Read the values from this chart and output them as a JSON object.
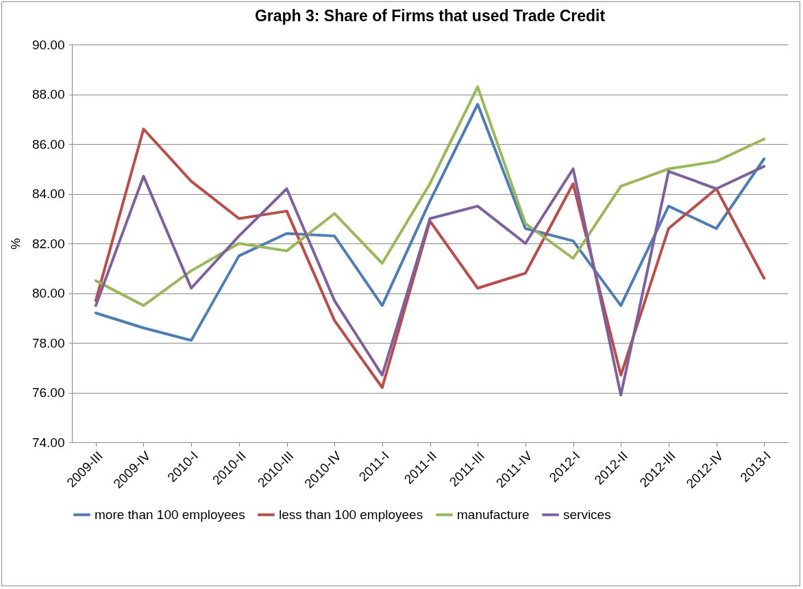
{
  "chart_data": {
    "type": "line",
    "title": "Graph 3: Share of Firms that used Trade Credit",
    "ylabel": "%",
    "categories": [
      "2009-III",
      "2009-IV",
      "2010-I",
      "2010-II",
      "2010-III",
      "2010-IV",
      "2011-I",
      "2011-II",
      "2011-III",
      "2011-IV",
      "2012-I",
      "2012-II",
      "2012-III",
      "2012-IV",
      "2013-I"
    ],
    "series": [
      {
        "name": "more than 100 employees",
        "color": "#4a7ebb",
        "values": [
          79.2,
          78.6,
          78.1,
          81.5,
          82.4,
          82.3,
          79.5,
          83.7,
          87.6,
          82.6,
          82.1,
          79.5,
          83.5,
          82.6,
          85.4
        ]
      },
      {
        "name": "less than 100 employees",
        "color": "#be4b48",
        "values": [
          79.7,
          86.6,
          84.5,
          83.0,
          83.3,
          78.9,
          76.2,
          82.9,
          80.2,
          80.8,
          84.4,
          76.7,
          82.6,
          84.2,
          80.6
        ]
      },
      {
        "name": "manufacture",
        "color": "#98b954",
        "values": [
          80.5,
          79.5,
          80.9,
          82.0,
          81.7,
          83.2,
          81.2,
          84.4,
          88.3,
          82.8,
          81.4,
          84.3,
          85.0,
          85.3,
          86.2
        ]
      },
      {
        "name": "services",
        "color": "#7d60a0",
        "values": [
          79.5,
          84.7,
          80.2,
          82.3,
          84.2,
          79.7,
          76.7,
          83.0,
          83.5,
          82.0,
          85.0,
          75.9,
          84.9,
          84.2,
          85.1
        ]
      }
    ],
    "ylim": [
      74,
      90
    ],
    "yticks": [
      {
        "value": 74,
        "label": "74.00"
      },
      {
        "value": 76,
        "label": "76.00"
      },
      {
        "value": 78,
        "label": "78.00"
      },
      {
        "value": 80,
        "label": "80.00"
      },
      {
        "value": 82,
        "label": "82.00"
      },
      {
        "value": 84,
        "label": "84.00"
      },
      {
        "value": 86,
        "label": "86.00"
      },
      {
        "value": 88,
        "label": "88.00"
      },
      {
        "value": 90,
        "label": "90.00"
      }
    ],
    "grid": "y",
    "legend": "bottom",
    "marker": "none",
    "line_style": "solid"
  }
}
